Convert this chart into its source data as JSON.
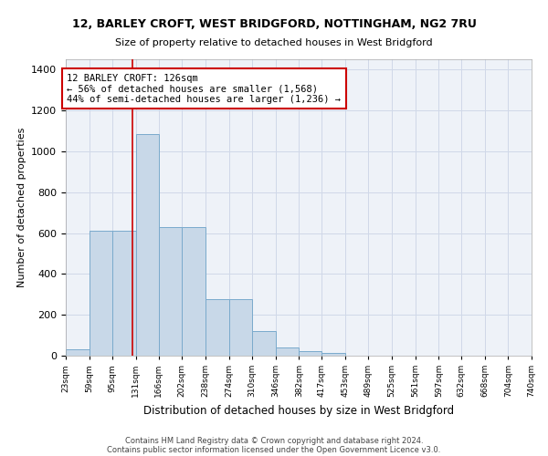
{
  "title1": "12, BARLEY CROFT, WEST BRIDGFORD, NOTTINGHAM, NG2 7RU",
  "title2": "Size of property relative to detached houses in West Bridgford",
  "xlabel": "Distribution of detached houses by size in West Bridgford",
  "ylabel": "Number of detached properties",
  "footnote1": "Contains HM Land Registry data © Crown copyright and database right 2024.",
  "footnote2": "Contains public sector information licensed under the Open Government Licence v3.0.",
  "bin_edges": [
    23,
    59,
    95,
    131,
    166,
    202,
    238,
    274,
    310,
    346,
    382,
    417,
    453,
    489,
    525,
    561,
    597,
    632,
    668,
    704,
    740
  ],
  "bar_heights": [
    30,
    613,
    613,
    1085,
    630,
    630,
    275,
    275,
    120,
    40,
    22,
    15,
    0,
    0,
    0,
    0,
    0,
    0,
    0,
    0
  ],
  "bar_color": "#c8d8e8",
  "bar_edge_color": "#7aaacc",
  "grid_color": "#d0d8e8",
  "property_size": 126,
  "annotation_text": "12 BARLEY CROFT: 126sqm\n← 56% of detached houses are smaller (1,568)\n44% of semi-detached houses are larger (1,236) →",
  "annotation_box_color": "#ffffff",
  "annotation_border_color": "#cc0000",
  "vline_color": "#cc0000",
  "ylim": [
    0,
    1450
  ],
  "yticks": [
    0,
    200,
    400,
    600,
    800,
    1000,
    1200,
    1400
  ],
  "background_color": "#eef2f8"
}
